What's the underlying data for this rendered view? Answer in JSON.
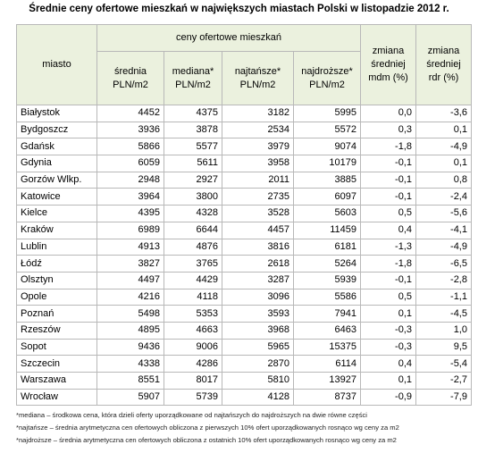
{
  "title": "Średnie ceny ofertowe mieszkań w największych miastach Polski w listopadzie 2012 r.",
  "header": {
    "city": "miasto",
    "group": "ceny ofertowe mieszkań",
    "columns": [
      {
        "lines": [
          "średnia",
          "PLN/m2"
        ]
      },
      {
        "lines": [
          "mediana*",
          "PLN/m2"
        ]
      },
      {
        "lines": [
          "najtańsze*",
          "PLN/m2"
        ]
      },
      {
        "lines": [
          "najdroższe*",
          "PLN/m2"
        ]
      },
      {
        "lines": [
          "zmiana",
          "średniej",
          "mdm (%)"
        ]
      },
      {
        "lines": [
          "zmiana",
          "średniej",
          "rdr (%)"
        ]
      }
    ]
  },
  "table": {
    "rows": [
      [
        "Białystok",
        "4452",
        "4375",
        "3182",
        "5995",
        "0,0",
        "-3,6"
      ],
      [
        "Bydgoszcz",
        "3936",
        "3878",
        "2534",
        "5572",
        "0,3",
        "0,1"
      ],
      [
        "Gdańsk",
        "5866",
        "5577",
        "3979",
        "9074",
        "-1,8",
        "-4,9"
      ],
      [
        "Gdynia",
        "6059",
        "5611",
        "3958",
        "10179",
        "-0,1",
        "0,1"
      ],
      [
        "Gorzów Wlkp.",
        "2948",
        "2927",
        "2011",
        "3885",
        "-0,1",
        "0,8"
      ],
      [
        "Katowice",
        "3964",
        "3800",
        "2735",
        "6097",
        "-0,1",
        "-2,4"
      ],
      [
        "Kielce",
        "4395",
        "4328",
        "3528",
        "5603",
        "0,5",
        "-5,6"
      ],
      [
        "Kraków",
        "6989",
        "6644",
        "4457",
        "11459",
        "0,4",
        "-4,1"
      ],
      [
        "Lublin",
        "4913",
        "4876",
        "3816",
        "6181",
        "-1,3",
        "-4,9"
      ],
      [
        "Łódź",
        "3827",
        "3765",
        "2618",
        "5264",
        "-1,8",
        "-6,5"
      ],
      [
        "Olsztyn",
        "4497",
        "4429",
        "3287",
        "5939",
        "-0,1",
        "-2,8"
      ],
      [
        "Opole",
        "4216",
        "4118",
        "3096",
        "5586",
        "0,5",
        "-1,1"
      ],
      [
        "Poznań",
        "5498",
        "5353",
        "3593",
        "7941",
        "0,1",
        "-4,5"
      ],
      [
        "Rzeszów",
        "4895",
        "4663",
        "3968",
        "6463",
        "-0,3",
        "1,0"
      ],
      [
        "Sopot",
        "9436",
        "9006",
        "5965",
        "15375",
        "-0,3",
        "9,5"
      ],
      [
        "Szczecin",
        "4338",
        "4286",
        "2870",
        "6114",
        "0,4",
        "-5,4"
      ],
      [
        "Warszawa",
        "8551",
        "8017",
        "5810",
        "13927",
        "0,1",
        "-2,7"
      ],
      [
        "Wrocław",
        "5907",
        "5739",
        "4128",
        "8737",
        "-0,9",
        "-7,9"
      ]
    ]
  },
  "footnotes": [
    "*mediana – środkowa cena, która dzieli oferty uporządkowane od najtańszych do najdroższych na dwie równe części",
    "*najtańsze – średnia arytmetyczna cen ofertowych obliczona z pierwszych 10% ofert uporządkowanych rosnąco wg ceny za m2",
    "*najdroższe – średnia arytmetyczna cen ofertowych obliczona z ostatnich 10% ofert uporządkowanych rosnąco wg ceny za m2"
  ]
}
